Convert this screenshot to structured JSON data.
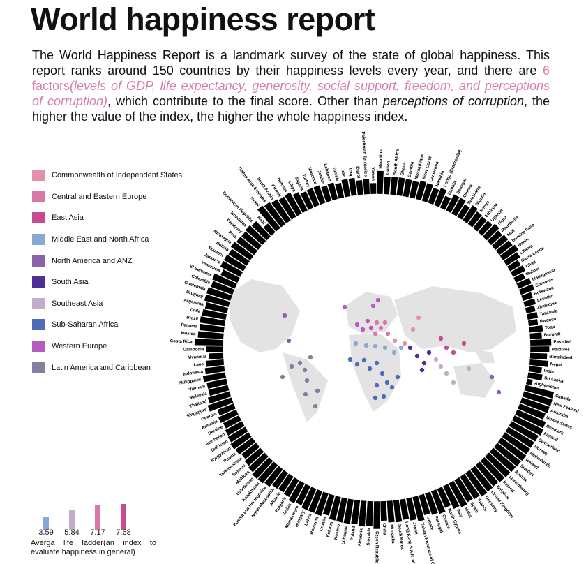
{
  "title": "World happiness report",
  "intro": {
    "part1": "The World Happiness Report is a landmark survey of the state of global happiness. This report ranks around 150 countries by their happiness levels every year, and there are ",
    "factors_num": "6 factors",
    "factors_list": "(levels of GDP, life expectancy, generosity, social support, freedom, and perceptions of corruption)",
    "part2": ", which contribute to the final score. Other than ",
    "emph": "perceptions of corruption",
    "part3": ", the higher the value of the index, the higher the whole happiness index."
  },
  "colors": {
    "highlight": "#d77fae",
    "land": "#e3e3e3",
    "regions": {
      "Commonwealth of Independent States": "#e390a8",
      "Central and Eastern Europe": "#d877a9",
      "East Asia": "#c74b8f",
      "Middle East and North Africa": "#86a9d5",
      "North America and ANZ": "#8e62a8",
      "South Asia": "#4f2f93",
      "Southeast Asia": "#c2acca",
      "Sub-Saharan Africa": "#4f6cb8",
      "Western Europe": "#b55cbd",
      "Latin America and Caribbean": "#847f9f"
    }
  },
  "legend": [
    {
      "label": "Commonwealth of Independent States",
      "color": "#e390a8"
    },
    {
      "label": "Central and Eastern Europe",
      "color": "#d877a9"
    },
    {
      "label": "East Asia",
      "color": "#c74b8f"
    },
    {
      "label": "Middle East and North Africa",
      "color": "#86a9d5"
    },
    {
      "label": "North America and ANZ",
      "color": "#8e62a8"
    },
    {
      "label": "South Asia",
      "color": "#4f2f93"
    },
    {
      "label": "Southeast Asia",
      "color": "#c2acca"
    },
    {
      "label": "Sub-Saharan Africa",
      "color": "#4f6cb8"
    },
    {
      "label": "Western Europe",
      "color": "#b55cbd"
    },
    {
      "label": "Latin America and Caribbean",
      "color": "#847f9f"
    }
  ],
  "scale": {
    "caption": "Averga life ladder(an index to evaluate happiness in general)",
    "items": [
      {
        "value": 3.59,
        "color": "#86a9d5"
      },
      {
        "value": 5.84,
        "color": "#c2acca"
      },
      {
        "value": 7.17,
        "color": "#d877a9"
      },
      {
        "value": 7.68,
        "color": "#c74b8f"
      }
    ]
  },
  "chart_data": {
    "type": "radial bar",
    "value_label": "Averga life ladder(an index to evaluate happiness in general)",
    "value_range": [
      3.59,
      7.68
    ],
    "groups": [
      {
        "region": "Sub-Saharan Africa",
        "countries": [
          {
            "name": "Mauritius",
            "value": 6.0
          },
          {
            "name": "Gabon",
            "value": 4.9
          },
          {
            "name": "South Africa",
            "value": 5.0
          },
          {
            "name": "Ghana",
            "value": 5.0
          },
          {
            "name": "Gambia",
            "value": 4.9
          },
          {
            "name": "Mozambique",
            "value": 4.8
          },
          {
            "name": "Ivory Coast",
            "value": 5.2
          },
          {
            "name": "Cameroon",
            "value": 5.1
          },
          {
            "name": "Namibia",
            "value": 4.6
          },
          {
            "name": "Congo (Brazzaville)",
            "value": 5.1
          },
          {
            "name": "Zambia",
            "value": 4.0
          },
          {
            "name": "Senegal",
            "value": 5.0
          },
          {
            "name": "Guinea",
            "value": 5.0
          },
          {
            "name": "Swaziland",
            "value": 4.3
          },
          {
            "name": "Nigeria",
            "value": 5.0
          },
          {
            "name": "Kenya",
            "value": 4.5
          },
          {
            "name": "Ethiopia",
            "value": 4.3
          },
          {
            "name": "Uganda",
            "value": 4.4
          },
          {
            "name": "Niger",
            "value": 4.9
          },
          {
            "name": "Mauritania",
            "value": 4.4
          },
          {
            "name": "Mali",
            "value": 4.7
          },
          {
            "name": "Burkina Faso",
            "value": 4.7
          },
          {
            "name": "Benin",
            "value": 5.1
          },
          {
            "name": "Liberia",
            "value": 4.6
          },
          {
            "name": "Sierra Leone",
            "value": 3.9
          },
          {
            "name": "Chad",
            "value": 4.2
          },
          {
            "name": "Malawi",
            "value": 3.5
          },
          {
            "name": "Madagascar",
            "value": 4.2
          },
          {
            "name": "Comoros",
            "value": 4.3
          },
          {
            "name": "Botswana",
            "value": 3.5
          },
          {
            "name": "Lesotho",
            "value": 3.7
          },
          {
            "name": "Zimbabwe",
            "value": 3.3
          },
          {
            "name": "Tanzania",
            "value": 3.5
          },
          {
            "name": "Rwanda",
            "value": 3.3
          },
          {
            "name": "Togo",
            "value": 4.1
          },
          {
            "name": "Burundi",
            "value": 3.8
          }
        ]
      },
      {
        "region": "South Asia",
        "countries": [
          {
            "name": "Pakistan",
            "value": 5.6
          },
          {
            "name": "Maldives",
            "value": 5.2
          },
          {
            "name": "Bangladesh",
            "value": 4.8
          },
          {
            "name": "Nepal",
            "value": 5.1
          },
          {
            "name": "India",
            "value": 4.0
          },
          {
            "name": "Sri Lanka",
            "value": 4.3
          },
          {
            "name": "Afghanistan",
            "value": 2.6
          }
        ]
      },
      {
        "region": "North America and ANZ",
        "countries": [
          {
            "name": "Canada",
            "value": 7.2
          },
          {
            "name": "New Zealand",
            "value": 7.3
          },
          {
            "name": "Australia",
            "value": 7.2
          },
          {
            "name": "United States",
            "value": 6.9
          }
        ]
      },
      {
        "region": "Western Europe",
        "countries": [
          {
            "name": "Denmark",
            "value": 7.6
          },
          {
            "name": "Finland",
            "value": 7.8
          },
          {
            "name": "Switzerland",
            "value": 7.5
          },
          {
            "name": "Norway",
            "value": 7.4
          },
          {
            "name": "Netherlands",
            "value": 7.4
          },
          {
            "name": "Iceland",
            "value": 7.5
          },
          {
            "name": "Sweden",
            "value": 7.4
          },
          {
            "name": "Austria",
            "value": 7.3
          },
          {
            "name": "Luxembourg",
            "value": 7.2
          },
          {
            "name": "Ireland",
            "value": 7.1
          },
          {
            "name": "Belgium",
            "value": 6.9
          },
          {
            "name": "United Kingdom",
            "value": 7.0
          },
          {
            "name": "Germany",
            "value": 7.1
          },
          {
            "name": "France",
            "value": 6.7
          },
          {
            "name": "Spain",
            "value": 6.5
          },
          {
            "name": "Malta",
            "value": 6.8
          },
          {
            "name": "Italy",
            "value": 6.4
          },
          {
            "name": "North Cyprus",
            "value": 5.5
          },
          {
            "name": "Cyprus",
            "value": 6.2
          },
          {
            "name": "Portugal",
            "value": 5.9
          },
          {
            "name": "Greece",
            "value": 5.5
          }
        ]
      },
      {
        "region": "East Asia",
        "countries": [
          {
            "name": "Taiwan Province of China",
            "value": 6.4
          },
          {
            "name": "Japan",
            "value": 5.9
          },
          {
            "name": "Hong Kong S.A.R. of China",
            "value": 5.5
          },
          {
            "name": "South Korea",
            "value": 5.8
          },
          {
            "name": "Mongolia",
            "value": 5.7
          },
          {
            "name": "China",
            "value": 5.3
          }
        ]
      },
      {
        "region": "Central and Eastern Europe",
        "countries": [
          {
            "name": "Czech Republic",
            "value": 6.9
          },
          {
            "name": "Slovakia",
            "value": 6.3
          },
          {
            "name": "Slovenia",
            "value": 6.5
          },
          {
            "name": "Poland",
            "value": 6.2
          },
          {
            "name": "Lithuania",
            "value": 6.3
          },
          {
            "name": "Kosovo",
            "value": 6.3
          },
          {
            "name": "Estonia",
            "value": 6.2
          },
          {
            "name": "Croatia",
            "value": 5.6
          },
          {
            "name": "Romania",
            "value": 6.1
          },
          {
            "name": "Latvia",
            "value": 6.0
          },
          {
            "name": "Hungary",
            "value": 6.0
          },
          {
            "name": "Montenegro",
            "value": 5.6
          },
          {
            "name": "Serbia",
            "value": 5.9
          },
          {
            "name": "Bulgaria",
            "value": 5.3
          },
          {
            "name": "Albania",
            "value": 5.1
          },
          {
            "name": "North Macedonia",
            "value": 5.2
          },
          {
            "name": "Bosnia and Herzegovina",
            "value": 5.8
          }
        ]
      },
      {
        "region": "Commonwealth of Independent States",
        "countries": [
          {
            "name": "Kazakhstan",
            "value": 6.1
          },
          {
            "name": "Uzbekistan",
            "value": 6.2
          },
          {
            "name": "Moldova",
            "value": 5.8
          },
          {
            "name": "Belarus",
            "value": 5.5
          },
          {
            "name": "Turkmenistan",
            "value": 5.1
          },
          {
            "name": "Russia",
            "value": 5.5
          },
          {
            "name": "Kyrgyzstan",
            "value": 5.7
          },
          {
            "name": "Tajikistan",
            "value": 5.4
          },
          {
            "name": "Azerbaijan",
            "value": 5.2
          },
          {
            "name": "Ukraine",
            "value": 4.9
          },
          {
            "name": "Armenia",
            "value": 5.3
          },
          {
            "name": "Georgia",
            "value": 4.9
          }
        ]
      },
      {
        "region": "Southeast Asia",
        "countries": [
          {
            "name": "Singapore",
            "value": 6.4
          },
          {
            "name": "Thailand",
            "value": 5.9
          },
          {
            "name": "Malaysia",
            "value": 5.4
          },
          {
            "name": "Vietnam",
            "value": 5.4
          },
          {
            "name": "Philippines",
            "value": 5.9
          },
          {
            "name": "Indonesia",
            "value": 5.3
          },
          {
            "name": "Laos",
            "value": 5.0
          },
          {
            "name": "Myanmar",
            "value": 4.3
          },
          {
            "name": "Cambodia",
            "value": 4.8
          }
        ]
      },
      {
        "region": "Latin America and Caribbean",
        "countries": [
          {
            "name": "Costa Rica",
            "value": 7.1
          },
          {
            "name": "Mexico",
            "value": 6.5
          },
          {
            "name": "Panama",
            "value": 6.3
          },
          {
            "name": "Brazil",
            "value": 6.4
          },
          {
            "name": "Chile",
            "value": 6.2
          },
          {
            "name": "Argentina",
            "value": 5.9
          },
          {
            "name": "Uruguay",
            "value": 6.4
          },
          {
            "name": "Guatemala",
            "value": 6.4
          },
          {
            "name": "Colombia",
            "value": 6.0
          },
          {
            "name": "El Salvador",
            "value": 6.3
          },
          {
            "name": "Venezuela",
            "value": 5.1
          },
          {
            "name": "Jamaica",
            "value": 5.9
          },
          {
            "name": "Ecuador",
            "value": 5.9
          },
          {
            "name": "Bolivia",
            "value": 5.7
          },
          {
            "name": "Nicaragua",
            "value": 6.1
          },
          {
            "name": "Peru",
            "value": 5.8
          },
          {
            "name": "Paraguay",
            "value": 5.7
          },
          {
            "name": "Honduras",
            "value": 5.9
          },
          {
            "name": "Dominican Republic",
            "value": 5.6
          },
          {
            "name": "Haiti",
            "value": 3.7
          }
        ]
      },
      {
        "region": "Middle East and North Africa",
        "countries": [
          {
            "name": "Israel",
            "value": 7.1
          },
          {
            "name": "United Arab Emirates",
            "value": 6.8
          },
          {
            "name": "Saudi Arabia",
            "value": 6.4
          },
          {
            "name": "Kuwait",
            "value": 6.1
          },
          {
            "name": "Bahrain",
            "value": 6.2
          },
          {
            "name": "Libya",
            "value": 5.5
          },
          {
            "name": "Algeria",
            "value": 5.0
          },
          {
            "name": "Turkey",
            "value": 5.1
          },
          {
            "name": "Morocco",
            "value": 5.1
          },
          {
            "name": "Jordan",
            "value": 4.6
          },
          {
            "name": "Lebanon",
            "value": 4.8
          },
          {
            "name": "Tunisia",
            "value": 4.4
          },
          {
            "name": "Iran",
            "value": 4.9
          },
          {
            "name": "Iraq",
            "value": 4.9
          },
          {
            "name": "Egypt",
            "value": 4.3
          },
          {
            "name": "Palestinian Territories",
            "value": 4.5
          },
          {
            "name": "Yemen",
            "value": 3.6
          }
        ]
      }
    ]
  }
}
